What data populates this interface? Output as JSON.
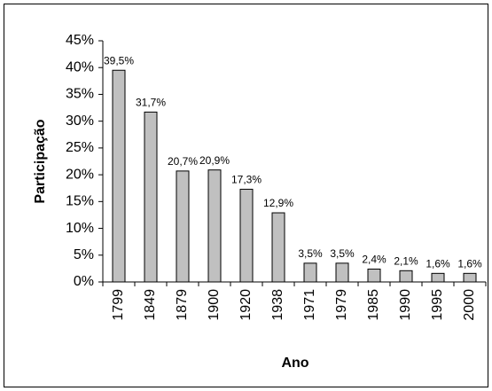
{
  "chart_data": {
    "type": "bar",
    "x_label": "Ano",
    "y_label": "Participação",
    "categories": [
      "1799",
      "1849",
      "1879",
      "1900",
      "1920",
      "1938",
      "1971",
      "1979",
      "1985",
      "1990",
      "1995",
      "2000"
    ],
    "values": [
      39.5,
      31.7,
      20.7,
      20.9,
      17.3,
      12.9,
      3.5,
      3.5,
      2.4,
      2.1,
      1.6,
      1.6
    ],
    "value_labels": [
      "39,5%",
      "31,7%",
      "20,7%",
      "20,9%",
      "17,3%",
      "12,9%",
      "3,5%",
      "3,5%",
      "2,4%",
      "2,1%",
      "1,6%",
      "1,6%"
    ],
    "color": "#c0c0c0",
    "ylim": [
      0,
      45
    ],
    "yticks": [
      {
        "value": 0,
        "label": "0%"
      },
      {
        "value": 5,
        "label": "5%"
      },
      {
        "value": 10,
        "label": "10%"
      },
      {
        "value": 15,
        "label": "15%"
      },
      {
        "value": 20,
        "label": "20%"
      },
      {
        "value": 25,
        "label": "25%"
      },
      {
        "value": 30,
        "label": "30%"
      },
      {
        "value": 35,
        "label": "35%"
      },
      {
        "value": 40,
        "label": "40%"
      },
      {
        "value": 45,
        "label": "45%"
      }
    ],
    "grid": false
  }
}
